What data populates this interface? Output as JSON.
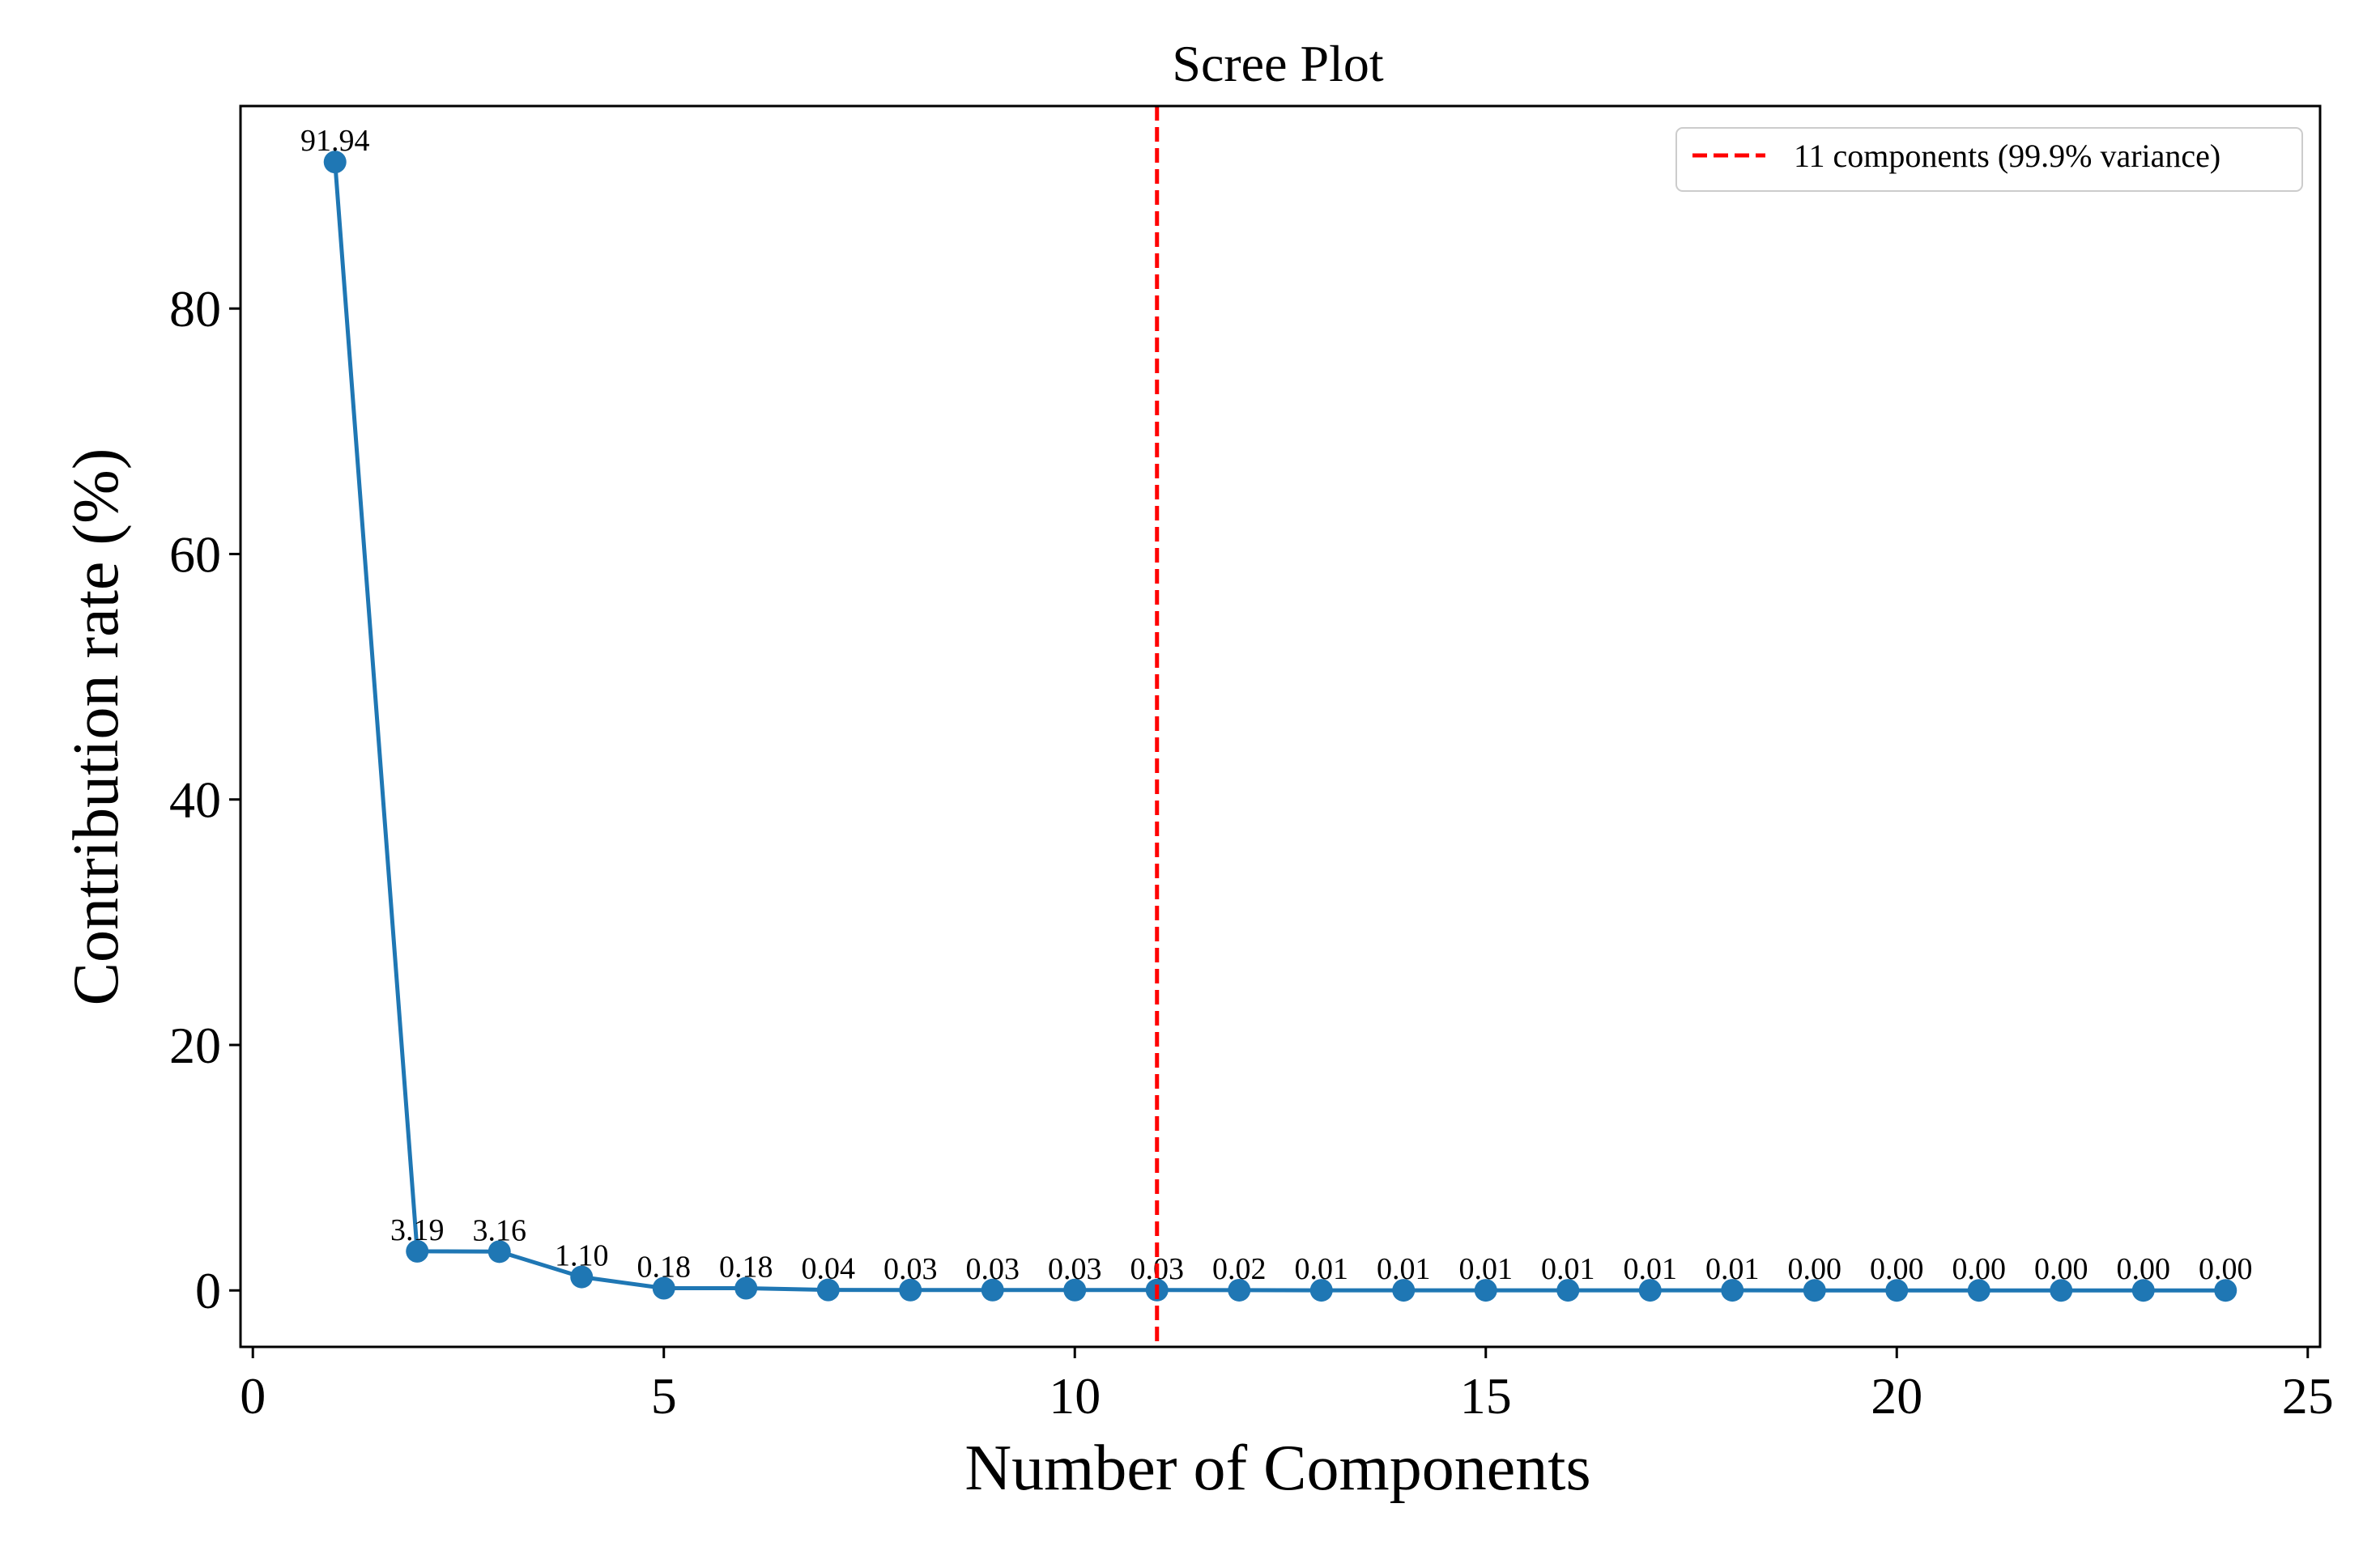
{
  "chart_data": {
    "type": "line",
    "title": "Scree Plot",
    "xlabel": "Number of Components",
    "ylabel": "Contribution rate (%)",
    "xlim": [
      -0.15,
      25.15
    ],
    "ylim": [
      -4.6,
      96.5
    ],
    "xticks": [
      0,
      5,
      10,
      15,
      20,
      25
    ],
    "yticks": [
      0,
      20,
      40,
      60,
      80
    ],
    "grid": false,
    "series": [
      {
        "name": "Contribution rate",
        "color": "#1f77b4",
        "x": [
          1,
          2,
          3,
          4,
          5,
          6,
          7,
          8,
          9,
          10,
          11,
          12,
          13,
          14,
          15,
          16,
          17,
          18,
          19,
          20,
          21,
          22,
          23,
          24
        ],
        "values": [
          91.94,
          3.19,
          3.16,
          1.1,
          0.18,
          0.18,
          0.04,
          0.03,
          0.03,
          0.03,
          0.03,
          0.02,
          0.01,
          0.01,
          0.01,
          0.01,
          0.01,
          0.01,
          0.0,
          0.0,
          0.0,
          0.0,
          0.0,
          0.0
        ],
        "labels": [
          "91.94",
          "3.19",
          "3.16",
          "1.10",
          "0.18",
          "0.18",
          "0.04",
          "0.03",
          "0.03",
          "0.03",
          "0.03",
          "0.02",
          "0.01",
          "0.01",
          "0.01",
          "0.01",
          "0.01",
          "0.01",
          "0.00",
          "0.00",
          "0.00",
          "0.00",
          "0.00",
          "0.00"
        ]
      }
    ],
    "reference_line": {
      "orientation": "vertical",
      "x": 11,
      "style": "dashed",
      "color": "#ff0000",
      "label": "11 components (99.9% variance)"
    },
    "legend": {
      "position": "top-right",
      "entries": [
        "11 components (99.9% variance)"
      ]
    }
  }
}
